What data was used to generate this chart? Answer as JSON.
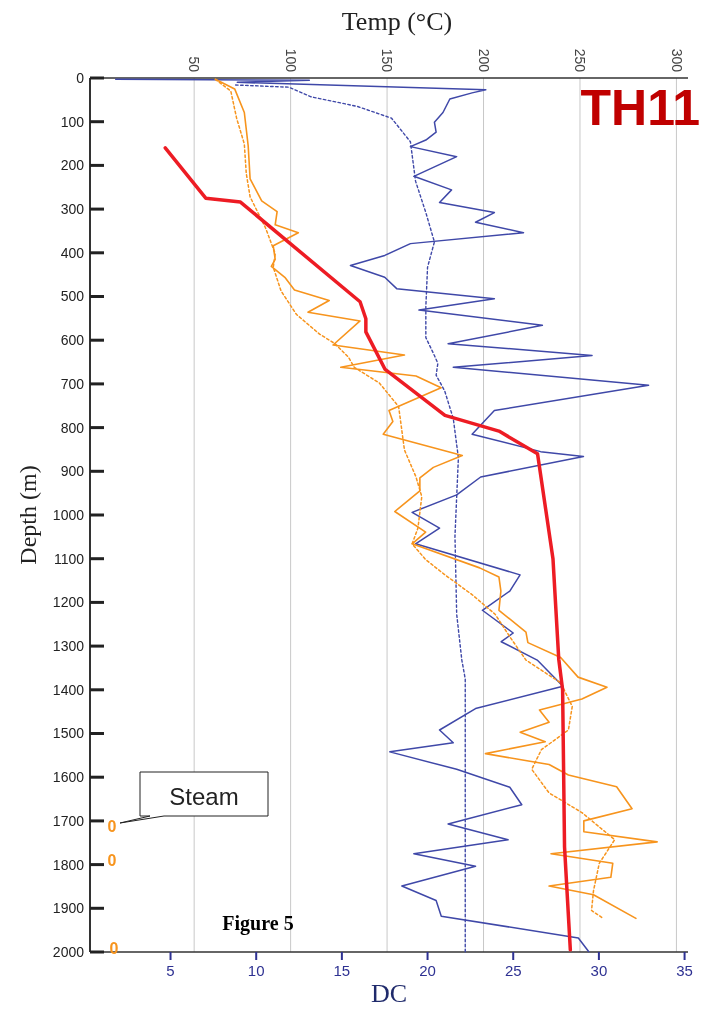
{
  "chart_data": {
    "type": "line",
    "orientation": "horizontal",
    "xlabel": "DC",
    "x2label": "Temp (°C)",
    "ylabel": "Depth (m)",
    "xlim": [
      0.3,
      35.2
    ],
    "xticks": [
      5,
      10,
      15,
      20,
      25,
      30,
      35
    ],
    "x2lim": [
      -4,
      306
    ],
    "x2ticks": [
      50,
      100,
      150,
      200,
      250,
      300
    ],
    "ylim": [
      2000,
      0
    ],
    "yticks": [
      0,
      100,
      200,
      300,
      400,
      500,
      600,
      700,
      800,
      900,
      1000,
      1100,
      1200,
      1300,
      1400,
      1500,
      1600,
      1700,
      1800,
      1900,
      2000
    ],
    "grid": "x",
    "annotations": [
      "TH11",
      "Figure 5",
      "Steam",
      "0",
      "0",
      "0"
    ],
    "series": [
      {
        "color": "#3f48a8",
        "line_style": "solid",
        "x": [
          3,
          5,
          10,
          27,
          34,
          48,
          79,
          101,
          124,
          142,
          157,
          180,
          225,
          256,
          285,
          308,
          330,
          354,
          379,
          406,
          429,
          456,
          482,
          505,
          531,
          566,
          608,
          635,
          662,
          703,
          761,
          815,
          855,
          866,
          913,
          954,
          994,
          1030,
          1066,
          1137,
          1174,
          1218,
          1270,
          1290,
          1332,
          1392,
          1443,
          1492,
          1521,
          1542,
          1582,
          1623,
          1663,
          1707,
          1743,
          1775,
          1804,
          1849,
          1882,
          1918,
          1968,
          1999
        ],
        "values": [
          1.8,
          13.1,
          8.9,
          23.4,
          22.6,
          21.3,
          20.9,
          20.4,
          20.5,
          19.9,
          19.0,
          21.7,
          19.2,
          21.4,
          20.7,
          23.9,
          22.8,
          25.6,
          19.0,
          17.5,
          15.5,
          17.5,
          18.2,
          23.9,
          19.5,
          26.7,
          21.2,
          29.6,
          21.5,
          32.9,
          23.9,
          22.6,
          26.6,
          29.1,
          23.1,
          21.7,
          19.1,
          20.7,
          19.3,
          25.4,
          24.8,
          23.2,
          25.0,
          24.3,
          26.4,
          27.9,
          22.8,
          20.7,
          21.5,
          17.8,
          21.7,
          24.8,
          25.5,
          21.2,
          24.7,
          19.2,
          22.8,
          18.5,
          20.5,
          20.8,
          28.8,
          29.4
        ]
      },
      {
        "color": "#3f48a8",
        "line_style": "dotted",
        "x": [
          16,
          21,
          43,
          65,
          92,
          146,
          236,
          308,
          375,
          433,
          523,
          594,
          635,
          653,
          680,
          716,
          779,
          869,
          1048,
          1227,
          1332,
          1375,
          1645,
          2000
        ],
        "values": [
          8.8,
          11.9,
          13.2,
          15.9,
          17.9,
          19.0,
          19.3,
          19.9,
          20.4,
          20.0,
          19.9,
          19.9,
          20.4,
          20.6,
          20.5,
          21.0,
          21.5,
          21.8,
          21.6,
          21.7,
          22.0,
          22.2,
          22.2,
          22.2
        ]
      },
      {
        "color": "#f7941d",
        "line_style": "solid",
        "axis": "x2",
        "x": [
          3,
          25,
          79,
          155,
          231,
          281,
          306,
          336,
          354,
          384,
          415,
          431,
          456,
          485,
          509,
          536,
          556,
          611,
          634,
          662,
          682,
          709,
          761,
          786,
          815,
          864,
          891,
          915,
          945,
          992,
          1039,
          1066,
          1121,
          1142,
          1174,
          1218,
          1268,
          1292,
          1326,
          1371,
          1394,
          1421,
          1446,
          1474,
          1497,
          1519,
          1546,
          1571,
          1595,
          1622,
          1672,
          1700,
          1725,
          1748,
          1775,
          1797,
          1829,
          1849,
          1869,
          1923
        ],
        "values": [
          61,
          71,
          76,
          78,
          79,
          85,
          93,
          92,
          104,
          91,
          92,
          90,
          97,
          102,
          120,
          109,
          136,
          122,
          159,
          126,
          165,
          178,
          151,
          153,
          148,
          189,
          174,
          167,
          167,
          154,
          170,
          163,
          198,
          208,
          209,
          208,
          222,
          223,
          240,
          249,
          264,
          251,
          229,
          234,
          219,
          232,
          201,
          234,
          244,
          269,
          277,
          252,
          252,
          290,
          235,
          267,
          266,
          234,
          257,
          279
        ]
      },
      {
        "color": "#f7941d",
        "line_style": "dotted",
        "axis": "x2",
        "x": [
          3,
          30,
          92,
          151,
          218,
          272,
          343,
          402,
          433,
          487,
          541,
          586,
          608,
          639,
          662,
          698,
          752,
          851,
          913,
          958,
          1030,
          1066,
          1102,
          1137,
          1182,
          1227,
          1281,
          1332,
          1384,
          1438,
          1492,
          1537,
          1582,
          1636,
          1681,
          1743,
          1797,
          1860,
          1905,
          1923
        ],
        "values": [
          61,
          69,
          72,
          76,
          77,
          79,
          87,
          92,
          91,
          95,
          103,
          115,
          123,
          130,
          133,
          146,
          156,
          159,
          165,
          168,
          166,
          163,
          170,
          180,
          194,
          206,
          214,
          222,
          240,
          246,
          244,
          230,
          225,
          234,
          251,
          268,
          260,
          257,
          256,
          262
        ]
      },
      {
        "color": "#ed1c24",
        "line_style": "solid",
        "axis": "x2",
        "x": [
          160,
          275,
          284,
          512,
          551,
          581,
          667,
          772,
          808,
          860,
          1100,
          1330,
          1400,
          1760,
          1995
        ],
        "values": [
          35,
          56,
          74,
          136,
          139,
          139,
          149,
          180,
          208,
          228,
          236,
          239,
          241,
          242,
          245
        ]
      }
    ]
  }
}
